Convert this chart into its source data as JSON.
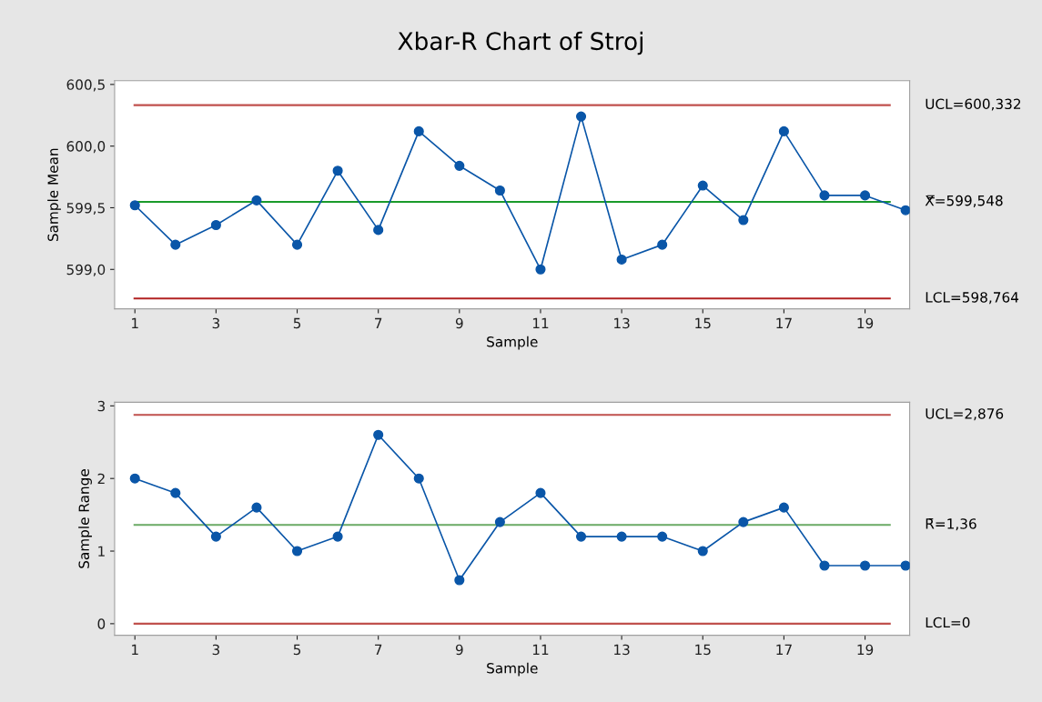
{
  "chart_data": [
    {
      "type": "line",
      "title": "Xbar-R Chart of Stroj",
      "xlabel": "Sample",
      "ylabel": "Sample Mean",
      "x": [
        1,
        2,
        3,
        4,
        5,
        6,
        7,
        8,
        9,
        10,
        11,
        12,
        13,
        14,
        15,
        16,
        17,
        18,
        19,
        20
      ],
      "series": [
        {
          "color": "#0a56a8",
          "values": [
            599.52,
            599.2,
            599.36,
            599.56,
            599.2,
            599.8,
            599.32,
            600.12,
            599.84,
            599.64,
            599.0,
            600.24,
            599.08,
            599.2,
            599.68,
            599.4,
            600.12,
            599.6,
            599.6,
            599.48
          ]
        }
      ],
      "xlim": [
        0.5,
        20.1
      ],
      "xticks": [
        1,
        3,
        5,
        7,
        9,
        11,
        13,
        15,
        17,
        19
      ],
      "ylim": [
        598.68,
        600.53
      ],
      "yticks": [
        {
          "value": 599.0,
          "label": "599,0"
        },
        {
          "value": 599.5,
          "label": "599,5"
        },
        {
          "value": 600.0,
          "label": "600,0"
        },
        {
          "value": 600.5,
          "label": "600,5"
        }
      ],
      "ref_lines": [
        {
          "axis": "y",
          "value": 600.332,
          "label": "UCL=600,332",
          "color": "#c0504d"
        },
        {
          "axis": "y",
          "value": 599.548,
          "label": "X̿=599,548",
          "color": "#1a9a2a"
        },
        {
          "axis": "y",
          "value": 598.764,
          "label": "LCL=598,764",
          "color": "#b22222"
        }
      ],
      "marker": "circle",
      "line_style": "solid"
    },
    {
      "type": "line",
      "xlabel": "Sample",
      "ylabel": "Sample Range",
      "x": [
        1,
        2,
        3,
        4,
        5,
        6,
        7,
        8,
        9,
        10,
        11,
        12,
        13,
        14,
        15,
        16,
        17,
        18,
        19,
        20
      ],
      "series": [
        {
          "color": "#0a56a8",
          "values": [
            2.0,
            1.8,
            1.2,
            1.6,
            1.0,
            1.2,
            2.6,
            2.0,
            0.6,
            1.4,
            1.8,
            1.2,
            1.2,
            1.2,
            1.0,
            1.4,
            1.6,
            0.8,
            0.8,
            0.8
          ]
        }
      ],
      "xlim": [
        0.5,
        20.1
      ],
      "xticks": [
        1,
        3,
        5,
        7,
        9,
        11,
        13,
        15,
        17,
        19
      ],
      "ylim": [
        -0.16,
        3.05
      ],
      "yticks": [
        0,
        1,
        2,
        3
      ],
      "ref_lines": [
        {
          "axis": "y",
          "value": 2.876,
          "label": "UCL=2,876",
          "color": "#c0504d"
        },
        {
          "axis": "y",
          "value": 1.36,
          "label": "R̄=1,36",
          "color": "#6aaa64"
        },
        {
          "axis": "y",
          "value": 0,
          "label": "LCL=0",
          "color": "#c0504d"
        }
      ],
      "marker": "circle",
      "line_style": "solid"
    }
  ]
}
